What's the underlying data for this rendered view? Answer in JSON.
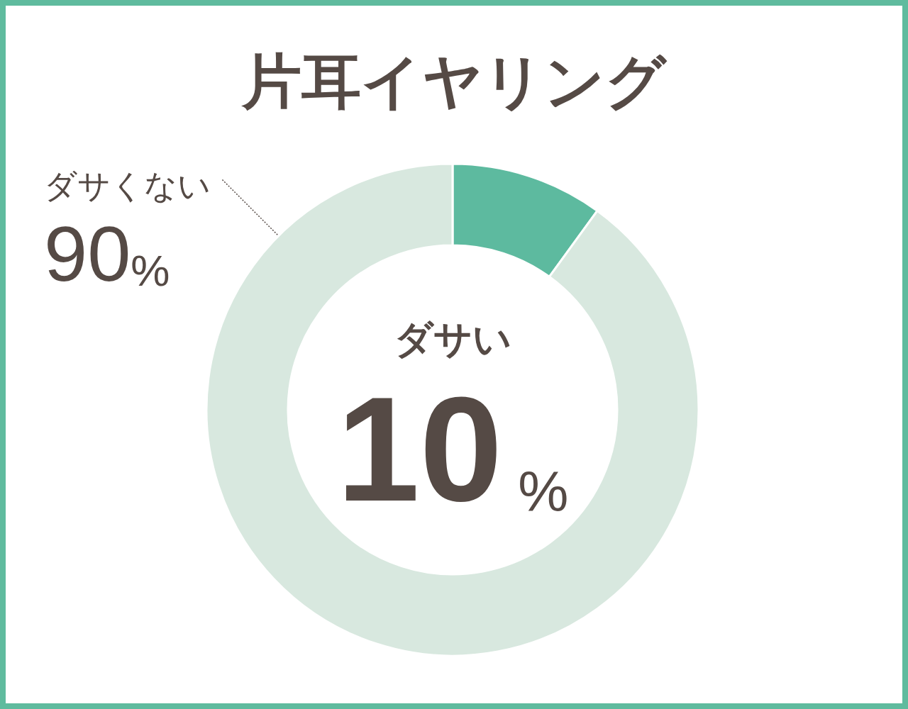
{
  "chart_data": {
    "type": "donut",
    "title": "片耳イヤリング",
    "categories": [
      "ダサい",
      "ダサくない"
    ],
    "values": [
      10,
      90
    ],
    "colors": [
      "#5dba9f",
      "#d8e8df"
    ],
    "value_labels": [
      "10%",
      "90%"
    ]
  }
}
